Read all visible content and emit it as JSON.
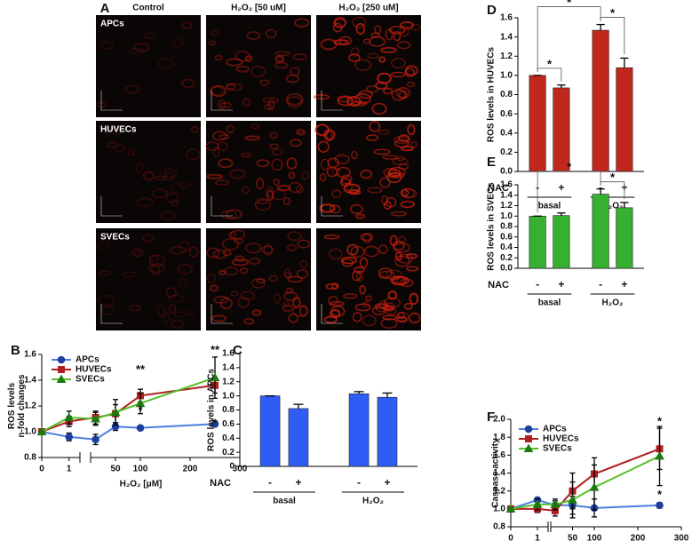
{
  "panel_a": {
    "label": "A",
    "columns": [
      "Control",
      "H₂O₂ [50 uM]",
      "H₂O₂ [250 uM]"
    ],
    "rows": [
      "APCs",
      "HUVECs",
      "SVECs"
    ]
  },
  "chart_data": [
    {
      "type": "line",
      "panel": "B",
      "ylabel": [
        "ROS levels",
        "n-fold changes"
      ],
      "xlabel": "H₂O₂ [μM]",
      "x": [
        0,
        1,
        10,
        50,
        100,
        250
      ],
      "x_segments": [
        {
          "xlim": [
            0,
            1.4
          ],
          "xticks": [
            0,
            1
          ]
        },
        {
          "xlim": [
            0,
            300
          ],
          "xticks": [
            50,
            100,
            200,
            300
          ]
        }
      ],
      "ylim": [
        0.8,
        1.6
      ],
      "yticks": [
        0.8,
        {
          "value": 1,
          "label": "1.0"
        },
        1.2,
        1.4,
        1.6
      ],
      "legend": "top-left",
      "series": [
        {
          "name": "APCs",
          "color": "#1f3f9f",
          "line_color": "#4a7fe0",
          "marker": "circle",
          "values": [
            1.0,
            0.96,
            0.94,
            1.04,
            1.03,
            1.06
          ],
          "errors": [
            0.0,
            0.03,
            0.04,
            0.03,
            0.01,
            0.02
          ]
        },
        {
          "name": "HUVECs",
          "color": "#b01e1e",
          "line_color": "#b01e1e",
          "marker": "square",
          "values": [
            1.0,
            1.08,
            1.11,
            1.14,
            1.28,
            1.36
          ],
          "errors": [
            0.0,
            0.04,
            0.05,
            0.07,
            0.05,
            0.06
          ]
        },
        {
          "name": "SVECs",
          "color": "#1a7a10",
          "line_color": "#55c02a",
          "marker": "triangle",
          "values": [
            1.0,
            1.11,
            1.1,
            1.15,
            1.22,
            1.42
          ],
          "errors": [
            0.0,
            0.05,
            0.05,
            0.1,
            0.08,
            0.16
          ]
        }
      ],
      "annotations": [
        {
          "text": "**",
          "x": 100,
          "y": 1.48
        },
        {
          "text": "*",
          "x": 100,
          "y": 1.16
        },
        {
          "text": "**",
          "x": 250,
          "y": 1.63
        },
        {
          "text": "*",
          "x": 250,
          "y": 1.06
        }
      ]
    },
    {
      "type": "bar",
      "panel": "C",
      "ylabel": "ROS levels in APCs",
      "color": "#2e5cf5",
      "categories": [
        "-",
        "+",
        "-",
        "+"
      ],
      "category_label": "NAC",
      "groups": [
        "basal",
        "H₂O₂"
      ],
      "values": [
        1.0,
        0.82,
        1.03,
        0.98
      ],
      "errors": [
        0.0,
        0.06,
        0.03,
        0.06
      ],
      "ylim": [
        0,
        1.6
      ],
      "yticks": [
        0,
        0.2,
        0.4,
        0.6,
        0.8,
        {
          "value": 1,
          "label": "1.0"
        },
        1.2,
        1.4,
        1.6
      ],
      "brackets": []
    },
    {
      "type": "bar",
      "panel": "D",
      "ylabel": "ROS levels in HUVECs",
      "color": "#c0281e",
      "categories": [
        "-",
        "+",
        "-",
        "+"
      ],
      "category_label": "NAC",
      "groups": [
        "basal",
        "H₂O₂"
      ],
      "values": [
        1.0,
        0.87,
        1.47,
        1.08
      ],
      "errors": [
        0.0,
        0.03,
        0.06,
        0.1
      ],
      "ylim": [
        0,
        1.6
      ],
      "yticks": [
        {
          "value": 0,
          "label": "0.0"
        },
        0.2,
        0.4,
        0.6,
        0.8,
        {
          "value": 1,
          "label": "1.0"
        },
        1.2,
        1.4,
        1.6
      ],
      "brackets": [
        {
          "from": 0,
          "to": 1,
          "text": "*"
        },
        {
          "from": 0,
          "to": 2,
          "text": "*"
        },
        {
          "from": 2,
          "to": 3,
          "text": "*"
        }
      ]
    },
    {
      "type": "bar",
      "panel": "E",
      "ylabel": "ROS levels in SVECs",
      "color": "#35b030",
      "categories": [
        "-",
        "+",
        "-",
        "+"
      ],
      "category_label": "NAC",
      "groups": [
        "basal",
        "H₂O₂"
      ],
      "values": [
        1.0,
        1.01,
        1.42,
        1.16
      ],
      "errors": [
        0.0,
        0.05,
        0.1,
        0.1
      ],
      "ylim": [
        0,
        1.6
      ],
      "yticks": [
        {
          "value": 0,
          "label": "0.0"
        },
        0.2,
        0.4,
        0.6,
        0.8,
        {
          "value": 1,
          "label": "1.0"
        },
        1.2,
        1.4,
        1.6
      ],
      "brackets": [
        {
          "from": 0,
          "to": 2,
          "text": "*"
        },
        {
          "from": 2,
          "to": 3,
          "text": "*"
        }
      ]
    },
    {
      "type": "line",
      "panel": "F",
      "ylabel": [
        "Caspase activity"
      ],
      "x": [
        0,
        1,
        10,
        50,
        100,
        250
      ],
      "x_segments": [
        {
          "xlim": [
            0,
            1.4
          ],
          "xticks": [
            0,
            1
          ]
        },
        {
          "xlim": [
            0,
            300
          ],
          "xticks": [
            50,
            100,
            200,
            300
          ]
        }
      ],
      "ylim": [
        0.8,
        2.0
      ],
      "yticks": [
        0.8,
        {
          "value": 1,
          "label": "1.0"
        },
        1.2,
        1.4,
        1.6,
        1.8,
        {
          "value": 2,
          "label": "2.0"
        }
      ],
      "legend": "top-left",
      "series": [
        {
          "name": "APCs",
          "color": "#1f3f9f",
          "line_color": "#4a7fe0",
          "marker": "circle",
          "values": [
            1.0,
            1.1,
            1.04,
            1.04,
            1.01,
            1.04
          ],
          "errors": [
            0.01,
            0.02,
            0.05,
            0.1,
            0.1,
            0.03
          ]
        },
        {
          "name": "HUVECs",
          "color": "#b01e1e",
          "line_color": "#b01e1e",
          "marker": "square",
          "values": [
            1.0,
            1.0,
            0.98,
            1.2,
            1.39,
            1.67
          ],
          "errors": [
            0.0,
            0.04,
            0.06,
            0.2,
            0.18,
            0.23
          ]
        },
        {
          "name": "SVECs",
          "color": "#1a7a10",
          "line_color": "#55c02a",
          "marker": "triangle",
          "values": [
            1.0,
            1.05,
            1.05,
            1.1,
            1.24,
            1.59
          ],
          "errors": [
            0.0,
            0.06,
            0.06,
            0.2,
            0.25,
            0.33
          ]
        }
      ],
      "annotations": [
        {
          "text": "*",
          "x": 250,
          "y": 1.97
        },
        {
          "text": "*",
          "x": 250,
          "y": 1.15
        }
      ]
    }
  ]
}
